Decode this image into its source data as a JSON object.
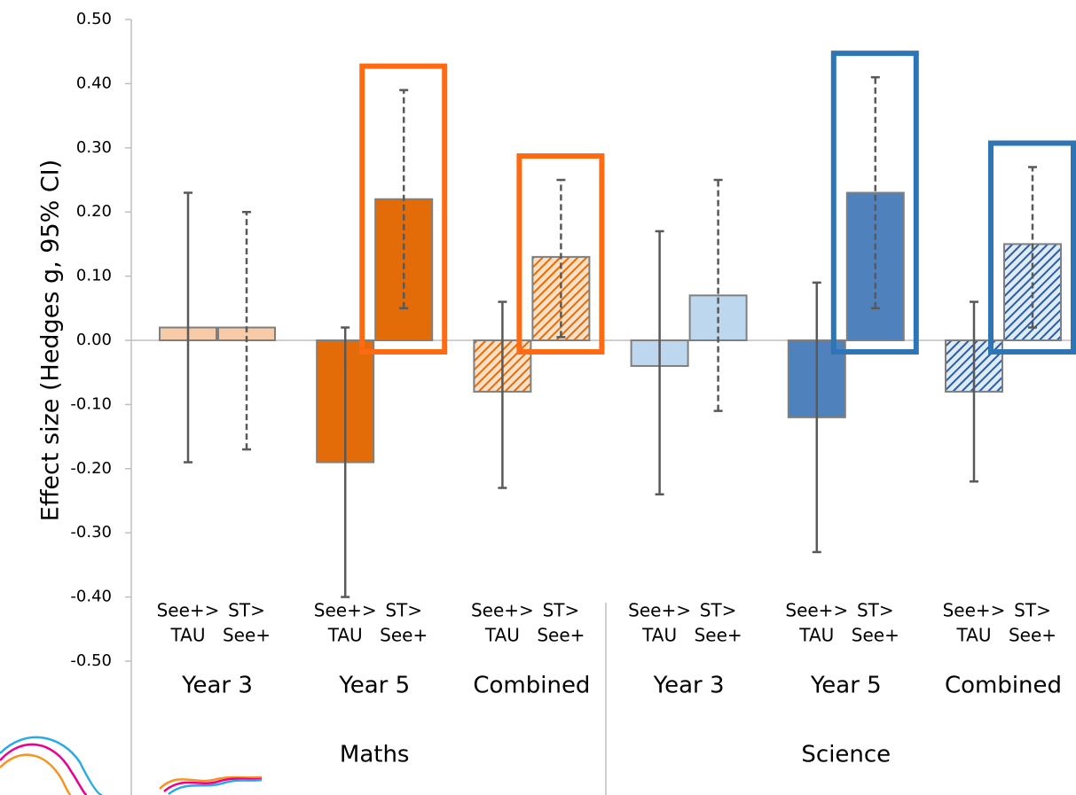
{
  "chart_data": {
    "type": "bar",
    "y_label": "Effect size (Hedges g, 95% CI)",
    "categories": [
      [
        "See+>",
        "TAU"
      ],
      [
        "ST>",
        "See+"
      ],
      [
        "See+>",
        "TAU"
      ],
      [
        "ST>",
        "See+"
      ],
      [
        "See+>",
        "TAU"
      ],
      [
        "ST>",
        "See+"
      ],
      [
        "See+>",
        "TAU"
      ],
      [
        "ST>",
        "See+"
      ],
      [
        "See+>",
        "TAU"
      ],
      [
        "ST>",
        "See+"
      ],
      [
        "See+>",
        "TAU"
      ],
      [
        "ST>",
        "See+"
      ]
    ],
    "groups": [
      "Year 3",
      "Year 5",
      "Combined",
      "Year 3",
      "Year 5",
      "Combined"
    ],
    "subjects": [
      "Maths",
      "Science"
    ],
    "values": [
      0.02,
      0.02,
      -0.19,
      0.22,
      -0.08,
      0.13,
      -0.04,
      0.07,
      -0.12,
      0.23,
      -0.08,
      0.15
    ],
    "ci_low": [
      -0.19,
      -0.17,
      -0.4,
      0.05,
      -0.23,
      0.005,
      -0.24,
      -0.11,
      -0.33,
      0.05,
      -0.22,
      0.02
    ],
    "ci_high": [
      0.23,
      0.2,
      0.02,
      0.39,
      0.06,
      0.25,
      0.17,
      0.25,
      0.09,
      0.41,
      0.06,
      0.27
    ],
    "colors": [
      "#f8cba8",
      "#f8cba8",
      "#e36c09",
      "#e36c09",
      "#f4b183",
      "#f4b183",
      "#bdd7ee",
      "#bdd7ee",
      "#4f81bd",
      "#4f81bd",
      "#9dc3e6",
      "#9dc3e6"
    ],
    "hatched": [
      false,
      false,
      false,
      false,
      true,
      true,
      false,
      false,
      false,
      false,
      true,
      true
    ],
    "dashed": [
      false,
      true,
      false,
      true,
      false,
      true,
      false,
      true,
      false,
      true,
      false,
      true
    ],
    "highlight": [
      null,
      null,
      null,
      "#ff6a13",
      null,
      "#ff6a13",
      null,
      null,
      null,
      "#2e75b6",
      null,
      "#2e75b6"
    ],
    "ylim": [
      -0.5,
      0.5
    ],
    "yticks": [
      {
        "value": -0.5,
        "label": "-0.50"
      },
      {
        "value": -0.4,
        "label": "-0.40"
      },
      {
        "value": -0.3,
        "label": "-0.30"
      },
      {
        "value": -0.2,
        "label": "-0.20"
      },
      {
        "value": -0.1,
        "label": "-0.10"
      },
      {
        "value": 0,
        "label": "0.00"
      },
      {
        "value": 0.1,
        "label": "0.10"
      },
      {
        "value": 0.2,
        "label": "0.20"
      },
      {
        "value": 0.3,
        "label": "0.30"
      },
      {
        "value": 0.4,
        "label": "0.40"
      },
      {
        "value": 0.5,
        "label": "0.50"
      }
    ]
  }
}
